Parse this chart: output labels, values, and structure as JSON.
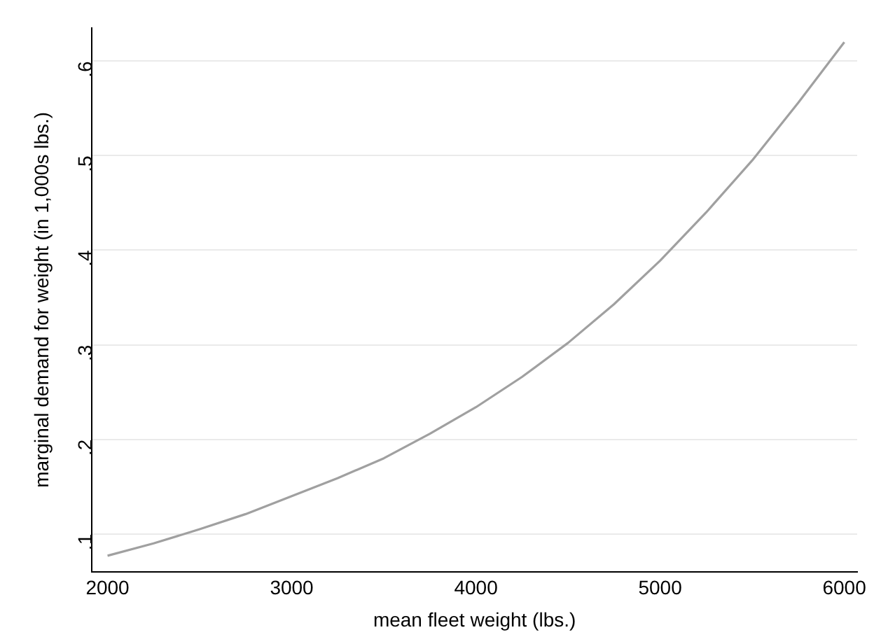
{
  "chart_data": {
    "type": "line",
    "xlabel": "mean fleet weight (lbs.)",
    "ylabel": "marginal demand for weight (in 1,000s lbs.)",
    "x": [
      2000,
      2250,
      2500,
      2750,
      3000,
      3250,
      3500,
      3750,
      4000,
      4250,
      4500,
      4750,
      5000,
      5250,
      5500,
      5750,
      6000
    ],
    "series": [
      {
        "color": "#a0a0a0",
        "values": [
          0.077,
          0.09,
          0.105,
          0.121,
          0.14,
          0.159,
          0.18,
          0.206,
          0.234,
          0.266,
          0.302,
          0.343,
          0.389,
          0.44,
          0.495,
          0.556,
          0.62
        ]
      }
    ],
    "xlim": [
      1915,
      6070
    ],
    "ylim": [
      0.06,
      0.635
    ],
    "xticks": [
      2000,
      3000,
      4000,
      5000,
      6000
    ],
    "yticks": [
      {
        "value": 0.1,
        "label": ".1"
      },
      {
        "value": 0.2,
        "label": ".2"
      },
      {
        "value": 0.3,
        "label": ".3"
      },
      {
        "value": 0.4,
        "label": ".4"
      },
      {
        "value": 0.5,
        "label": ".5"
      },
      {
        "value": 0.6,
        "label": ".6"
      }
    ],
    "grid": "y",
    "legend": false,
    "marker": "none",
    "line_style": "solid"
  }
}
